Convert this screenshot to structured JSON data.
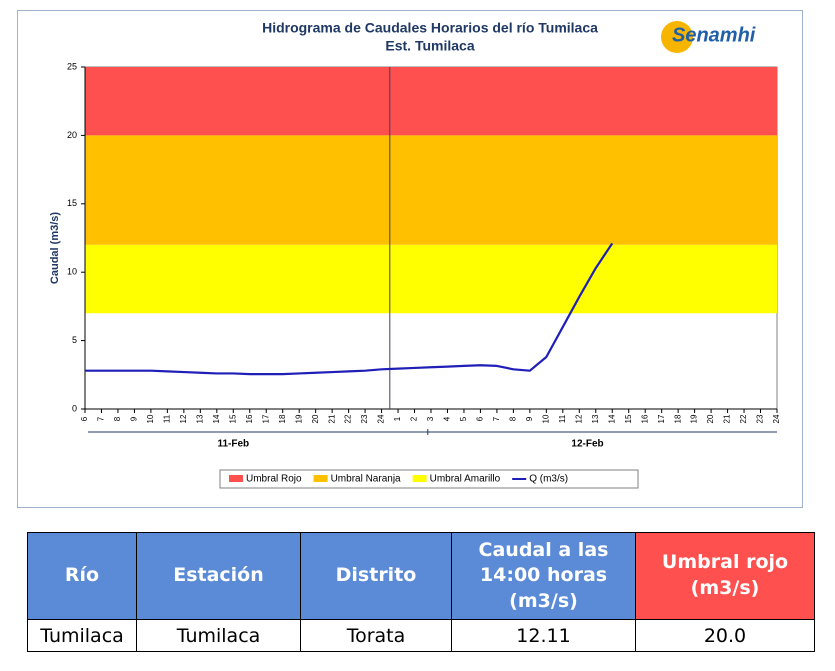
{
  "chart_data": {
    "type": "line",
    "title": "Hidrograma de Caudales Horarios del río Tumilaca",
    "subtitle": "Est. Tumilaca",
    "logo": "Senamhi",
    "y_label": "Caudal  (m3/s)",
    "categories": [
      6,
      7,
      8,
      9,
      10,
      11,
      12,
      13,
      14,
      15,
      16,
      17,
      18,
      19,
      20,
      21,
      22,
      23,
      24,
      1,
      2,
      3,
      4,
      5,
      6,
      7,
      8,
      9,
      10,
      11,
      12,
      13,
      14,
      15,
      16,
      17,
      18,
      19,
      20,
      21,
      22,
      23,
      24
    ],
    "category_groups": [
      "11-Feb",
      "12-Feb"
    ],
    "thresholds": [
      {
        "name": "Umbral Rojo",
        "color": "#ff5050",
        "from": 20,
        "to": 25
      },
      {
        "name": "Umbral Naranja",
        "color": "#ffc000",
        "from": 12,
        "to": 20
      },
      {
        "name": "Umbral Amarillo",
        "color": "#ffff00",
        "from": 7,
        "to": 12
      }
    ],
    "series": [
      {
        "name": "Q (m3/s)",
        "color": "#1f1fb8",
        "values": [
          2.8,
          2.8,
          2.8,
          2.8,
          2.8,
          2.75,
          2.7,
          2.65,
          2.6,
          2.6,
          2.55,
          2.55,
          2.55,
          2.6,
          2.65,
          2.7,
          2.75,
          2.8,
          2.9,
          2.95,
          3.0,
          3.05,
          3.1,
          3.15,
          3.2,
          3.15,
          2.9,
          2.8,
          3.8,
          6.0,
          8.2,
          10.3,
          12.11,
          null,
          null,
          null,
          null,
          null,
          null,
          null,
          null,
          null,
          null
        ]
      }
    ],
    "ylim": [
      0,
      25
    ],
    "yticks": [
      0,
      5,
      10,
      15,
      20,
      25
    ]
  },
  "table": {
    "header": [
      "Río",
      "Estación",
      "Distrito",
      "Caudal a las 14:00 horas (m3/s)",
      "Umbral rojo (m3/s)"
    ],
    "rows": [
      [
        "Tumilaca",
        "Tumilaca",
        "Torata",
        "12.11",
        "20.0"
      ]
    ]
  }
}
